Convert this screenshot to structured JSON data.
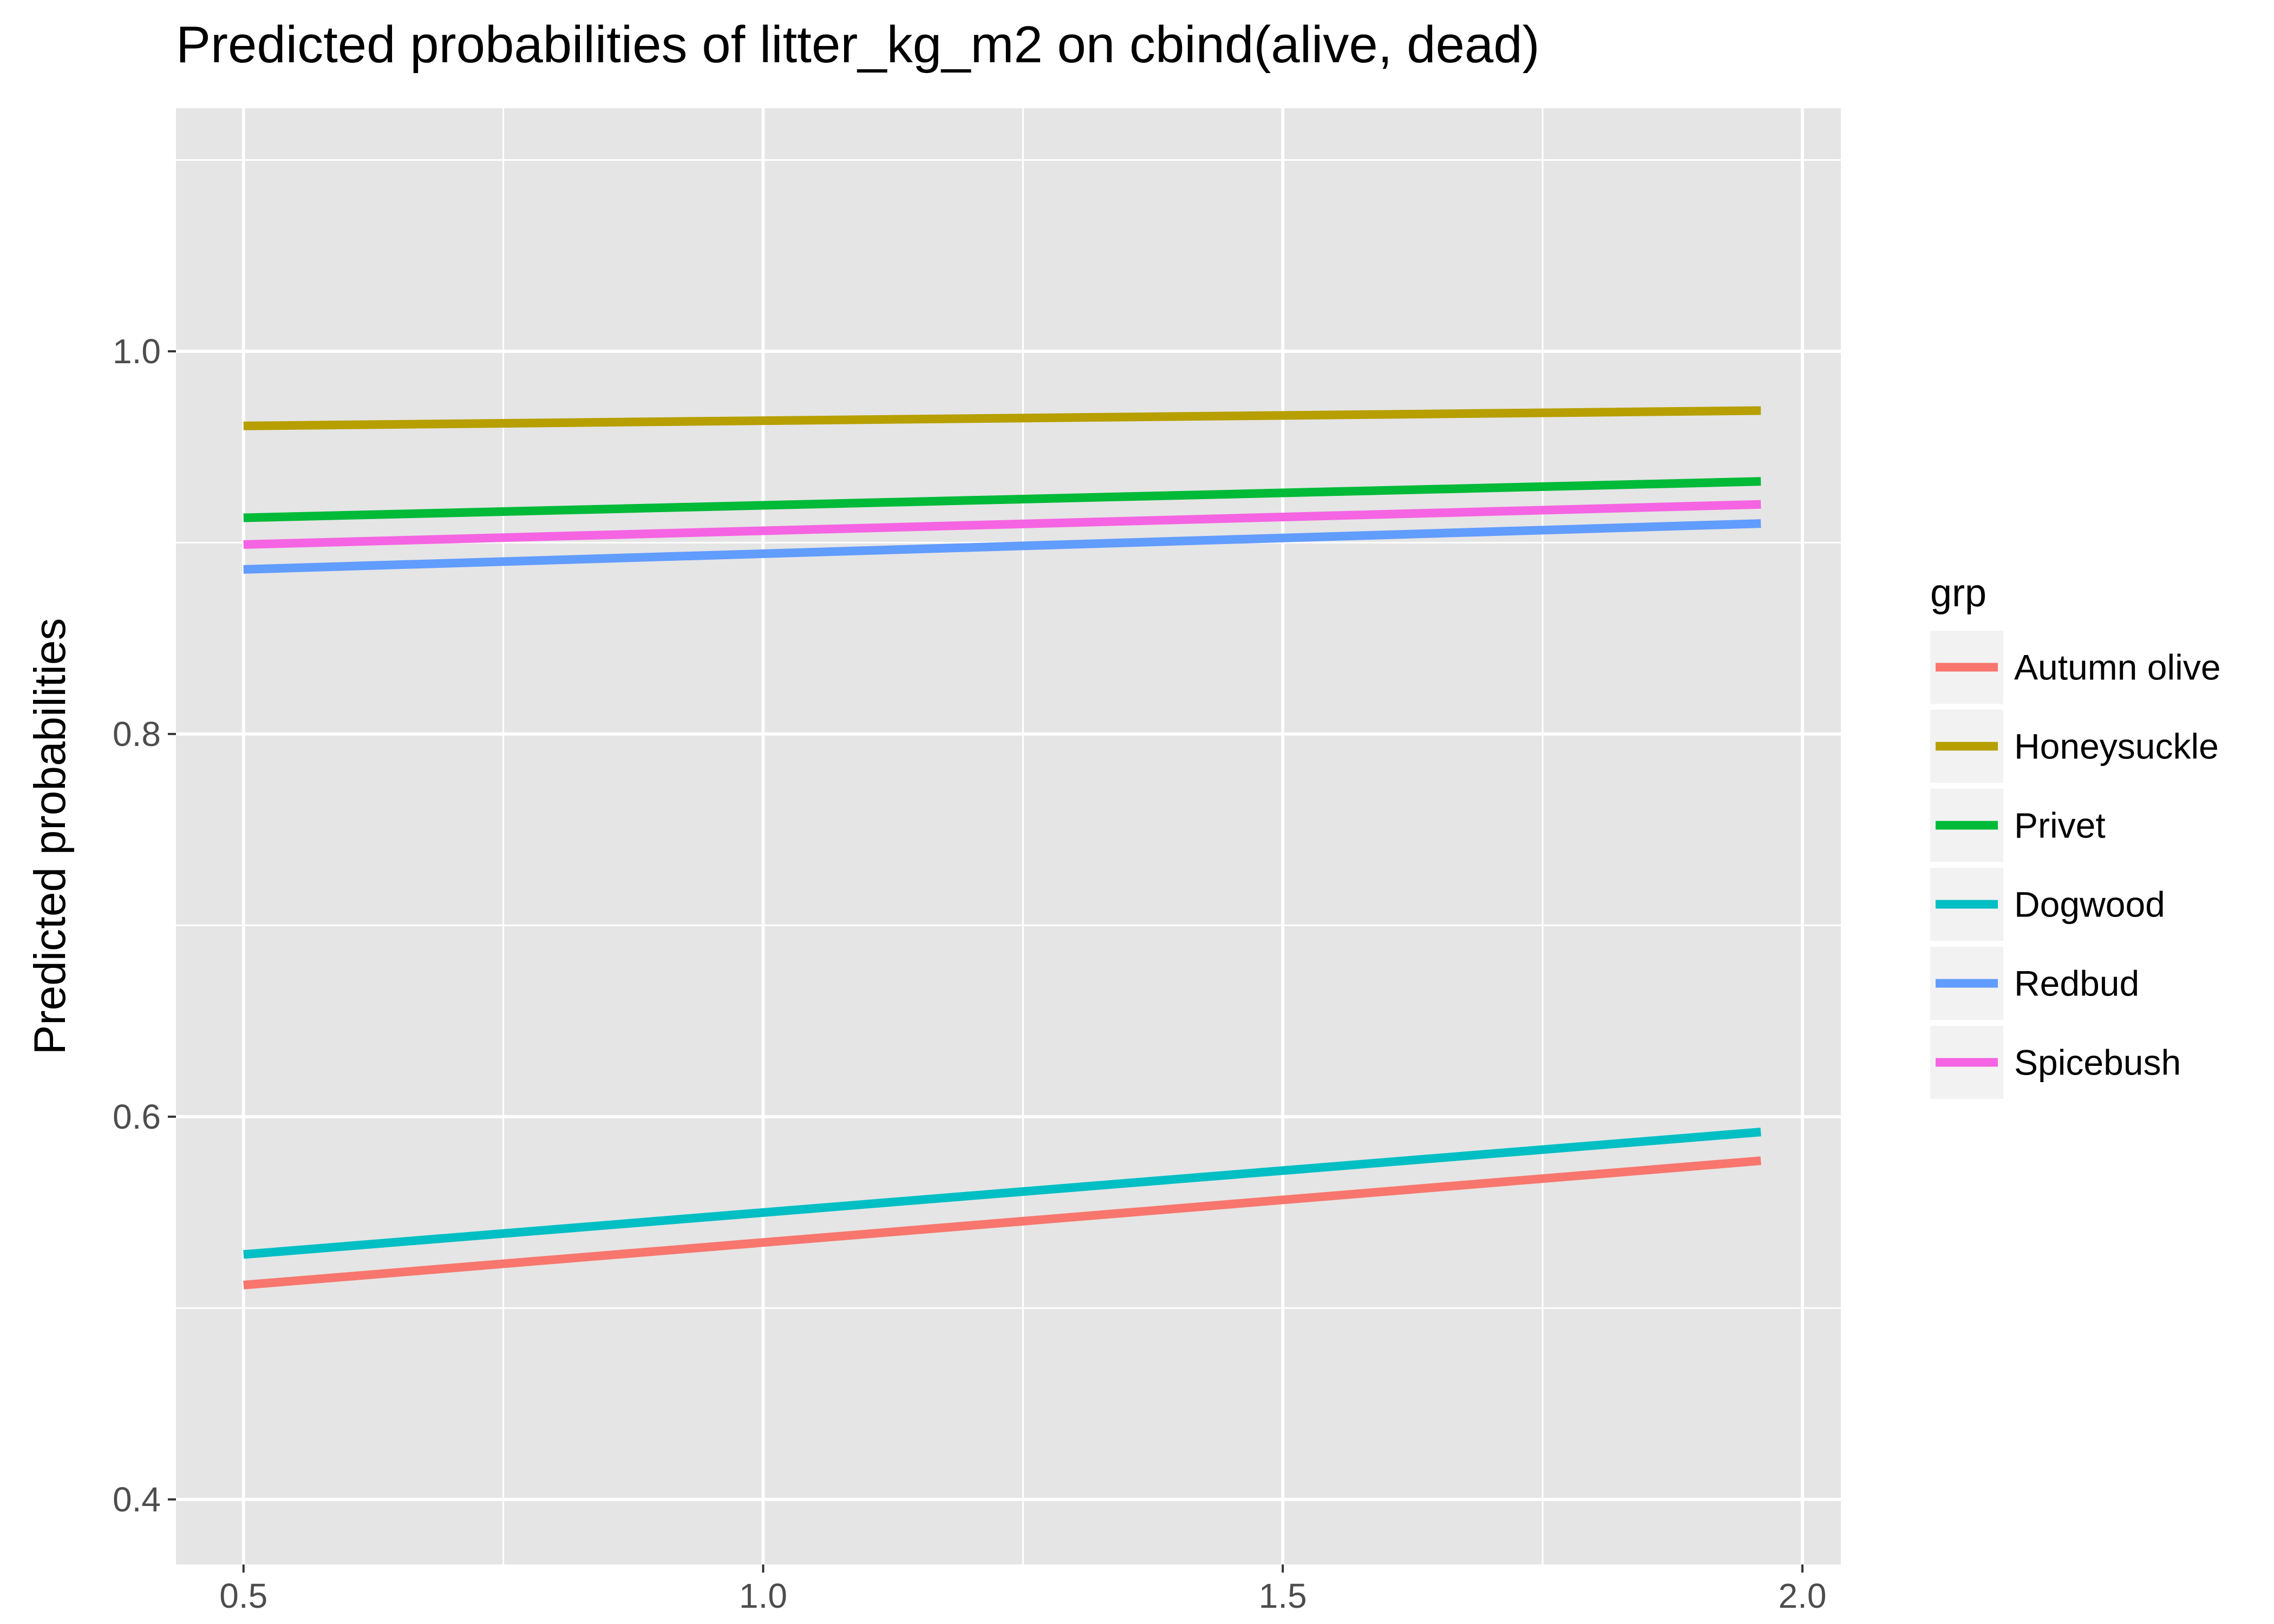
{
  "chart_data": {
    "type": "line",
    "title": "Predicted probabilities of litter_kg_m2 on cbind(alive, dead)",
    "xlabel": "",
    "ylabel": "Predicted probabilities",
    "xlim": [
      0.435,
      2.037
    ],
    "ylim": [
      0.366,
      1.127
    ],
    "x_ticks": [
      0.5,
      1.0,
      1.5,
      2.0
    ],
    "x_tick_labels": [
      "0.5",
      "1.0",
      "1.5",
      "2.0"
    ],
    "y_ticks": [
      0.4,
      0.6,
      0.8,
      1.0
    ],
    "y_tick_labels": [
      "0.4",
      "0.6",
      "0.8",
      "1.0"
    ],
    "grid": true,
    "panel_background": "#e5e5e5",
    "legend": {
      "title": "grp",
      "position": "right"
    },
    "series": [
      {
        "name": "Autumn olive",
        "color": "#f8766d",
        "x": [
          0.5,
          1.96
        ],
        "y": [
          0.512,
          0.577
        ]
      },
      {
        "name": "Honeysuckle",
        "color": "#b79f00",
        "x": [
          0.5,
          1.96
        ],
        "y": [
          0.961,
          0.969
        ]
      },
      {
        "name": "Privet",
        "color": "#00ba38",
        "x": [
          0.5,
          1.96
        ],
        "y": [
          0.913,
          0.932
        ]
      },
      {
        "name": "Dogwood",
        "color": "#00bfc4",
        "x": [
          0.5,
          1.96
        ],
        "y": [
          0.528,
          0.592
        ]
      },
      {
        "name": "Redbud",
        "color": "#619cff",
        "x": [
          0.5,
          1.96
        ],
        "y": [
          0.886,
          0.91
        ]
      },
      {
        "name": "Spicebush",
        "color": "#f564e3",
        "x": [
          0.5,
          1.96
        ],
        "y": [
          0.899,
          0.92
        ]
      }
    ]
  }
}
